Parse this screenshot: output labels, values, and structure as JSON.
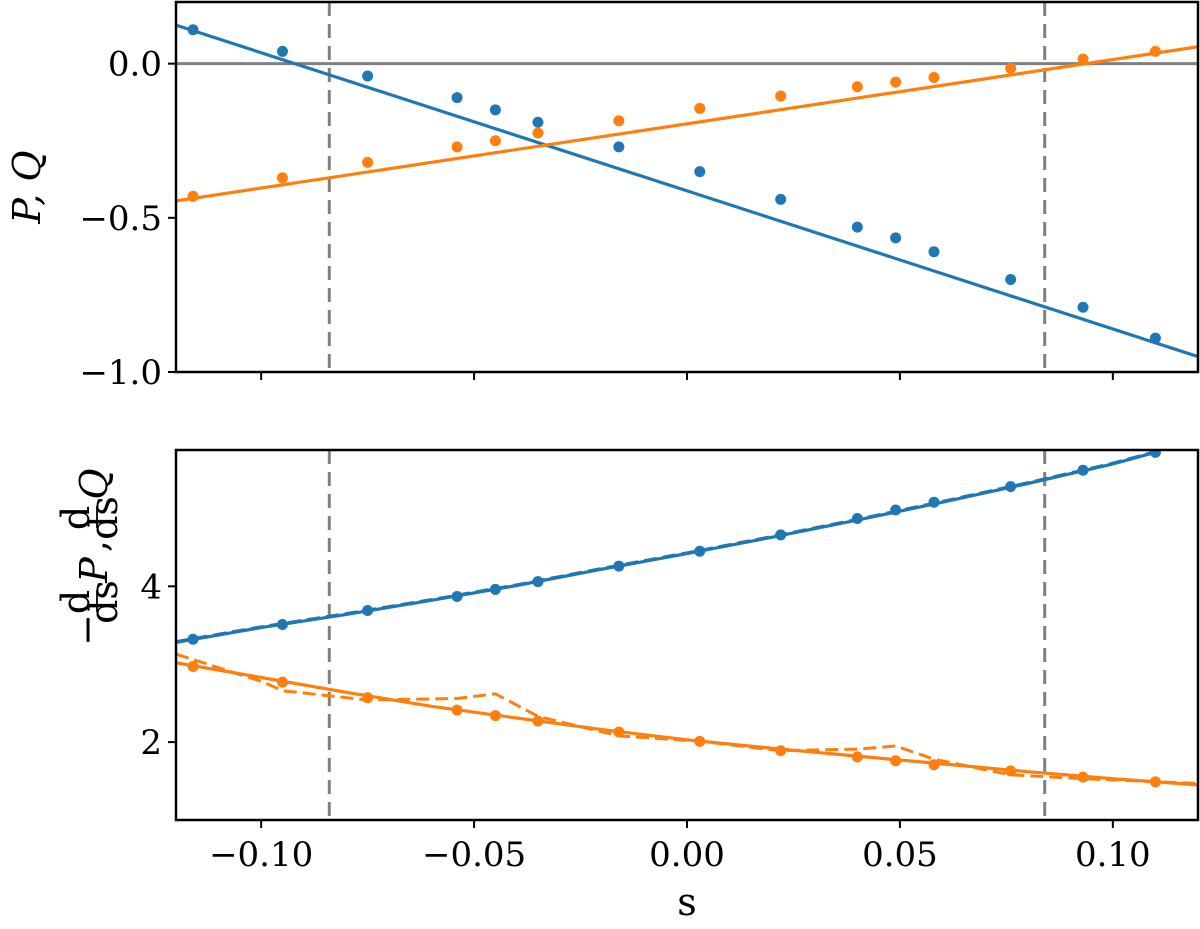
{
  "figure": {
    "colors": {
      "blue": "#1f77b4",
      "orange": "#ff7f0e",
      "reference": "#808080"
    }
  },
  "chart_data": [
    {
      "type": "line",
      "panel": "top",
      "ylabel": "P, Q",
      "xlabel": "",
      "xlim": [
        -0.12,
        0.12
      ],
      "ylim": [
        -1.0,
        0.2
      ],
      "xticks": [
        -0.1,
        -0.05,
        0.0,
        0.05,
        0.1
      ],
      "xtick_labels": [
        "",
        "",
        "",
        "",
        ""
      ],
      "yticks": [
        0.0,
        -0.5,
        -1.0
      ],
      "ytick_labels": [
        "0.0",
        "−0.5",
        "−1.0"
      ],
      "hline": 0.0,
      "vlines": [
        -0.084,
        0.084
      ],
      "series": [
        {
          "color": "#1f77b4",
          "line": {
            "x": [
              -0.12,
              0.12
            ],
            "y": [
              0.125,
              -0.95
            ]
          },
          "points": {
            "x": [
              -0.116,
              -0.095,
              -0.075,
              -0.054,
              -0.045,
              -0.035,
              -0.016,
              0.003,
              0.022,
              0.04,
              0.049,
              0.058,
              0.076,
              0.093,
              0.11
            ],
            "y": [
              0.11,
              0.04,
              -0.04,
              -0.11,
              -0.15,
              -0.19,
              -0.27,
              -0.35,
              -0.44,
              -0.53,
              -0.565,
              -0.61,
              -0.7,
              -0.79,
              -0.89
            ]
          }
        },
        {
          "color": "#ff7f0e",
          "line": {
            "x": [
              -0.12,
              0.12
            ],
            "y": [
              -0.445,
              0.055
            ]
          },
          "points": {
            "x": [
              -0.116,
              -0.095,
              -0.075,
              -0.054,
              -0.045,
              -0.035,
              -0.016,
              0.003,
              0.022,
              0.04,
              0.049,
              0.058,
              0.076,
              0.093,
              0.11
            ],
            "y": [
              -0.43,
              -0.37,
              -0.32,
              -0.27,
              -0.25,
              -0.225,
              -0.185,
              -0.145,
              -0.105,
              -0.075,
              -0.06,
              -0.045,
              -0.015,
              0.015,
              0.04
            ]
          }
        }
      ]
    },
    {
      "type": "line",
      "panel": "bottom",
      "ylabel": "− d/ds P, d/ds Q",
      "xlabel": "s",
      "xlim": [
        -0.12,
        0.12
      ],
      "ylim": [
        1.0,
        5.75
      ],
      "xticks": [
        -0.1,
        -0.05,
        0.0,
        0.05,
        0.1
      ],
      "xtick_labels": [
        "−0.10",
        "−0.05",
        "0.00",
        "0.05",
        "0.10"
      ],
      "yticks": [
        2,
        4
      ],
      "ytick_labels": [
        "2",
        "4"
      ],
      "vlines": [
        -0.084,
        0.084
      ],
      "series": [
        {
          "color": "#1f77b4",
          "line": {
            "x": [
              -0.12,
              -0.1,
              -0.08,
              -0.06,
              -0.04,
              -0.02,
              0.0,
              0.02,
              0.04,
              0.06,
              0.08,
              0.1,
              0.11
            ],
            "y": [
              3.28,
              3.47,
              3.64,
              3.82,
              4.01,
              4.22,
              4.42,
              4.63,
              4.85,
              5.08,
              5.32,
              5.57,
              5.72
            ]
          },
          "dashed": {
            "x": [
              -0.12,
              -0.1,
              -0.08,
              -0.06,
              -0.04,
              -0.02,
              0.0,
              0.02,
              0.04,
              0.06,
              0.08,
              0.1,
              0.11
            ],
            "y": [
              3.29,
              3.48,
              3.65,
              3.83,
              4.02,
              4.23,
              4.43,
              4.64,
              4.86,
              5.09,
              5.33,
              5.58,
              5.73
            ]
          },
          "points": {
            "x": [
              -0.116,
              -0.095,
              -0.075,
              -0.054,
              -0.045,
              -0.035,
              -0.016,
              0.003,
              0.022,
              0.04,
              0.049,
              0.058,
              0.076,
              0.093,
              0.11
            ],
            "y": [
              3.32,
              3.51,
              3.69,
              3.87,
              3.96,
              4.06,
              4.26,
              4.45,
              4.66,
              4.87,
              4.98,
              5.08,
              5.28,
              5.49,
              5.72
            ]
          }
        },
        {
          "color": "#ff7f0e",
          "line": {
            "x": [
              -0.12,
              -0.1,
              -0.08,
              -0.06,
              -0.04,
              -0.02,
              0.0,
              0.02,
              0.04,
              0.06,
              0.08,
              0.1,
              0.12
            ],
            "y": [
              3.02,
              2.83,
              2.64,
              2.46,
              2.31,
              2.16,
              2.03,
              1.92,
              1.82,
              1.72,
              1.62,
              1.53,
              1.45
            ]
          },
          "dashed": {
            "x": [
              -0.12,
              -0.1,
              -0.095,
              -0.075,
              -0.054,
              -0.045,
              -0.035,
              -0.016,
              0.003,
              0.022,
              0.04,
              0.049,
              0.058,
              0.076,
              0.093,
              0.12
            ],
            "y": [
              3.13,
              2.78,
              2.66,
              2.54,
              2.56,
              2.62,
              2.33,
              2.08,
              2.01,
              1.89,
              1.91,
              1.95,
              1.78,
              1.58,
              1.53,
              1.47
            ]
          },
          "points": {
            "x": [
              -0.116,
              -0.095,
              -0.075,
              -0.054,
              -0.045,
              -0.035,
              -0.016,
              0.003,
              0.022,
              0.04,
              0.049,
              0.058,
              0.076,
              0.093,
              0.11
            ],
            "y": [
              2.97,
              2.77,
              2.57,
              2.41,
              2.34,
              2.27,
              2.13,
              2.01,
              1.89,
              1.81,
              1.76,
              1.71,
              1.63,
              1.55,
              1.49
            ]
          }
        }
      ]
    }
  ]
}
